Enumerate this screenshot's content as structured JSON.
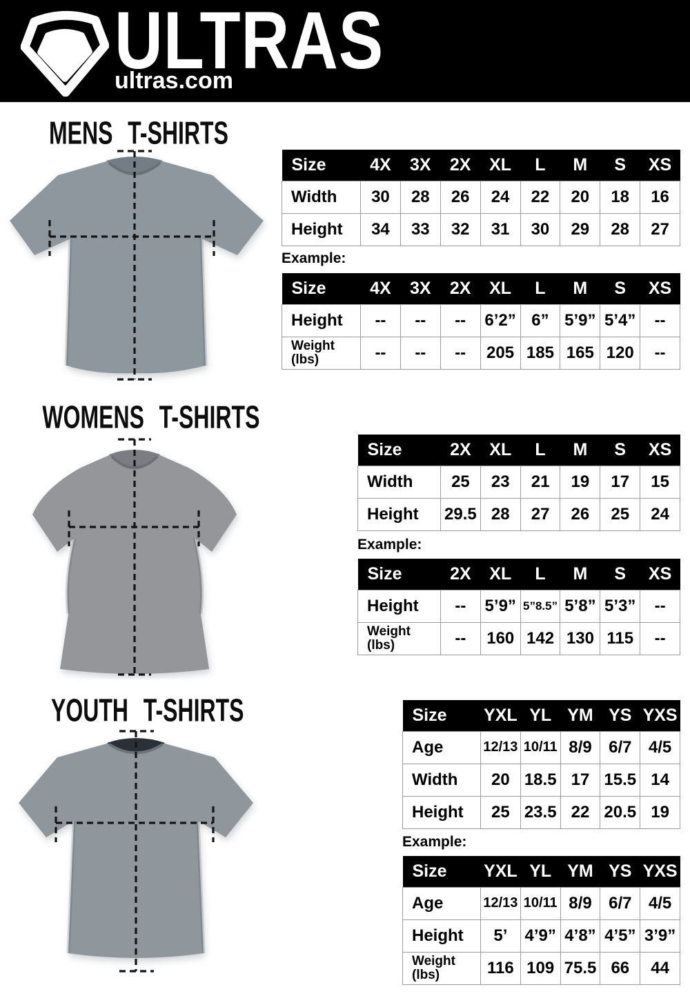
{
  "header": {
    "brand": "ULTRAS",
    "domain": "ultras.com",
    "logo_icon": "pentagon-shield-icon"
  },
  "colors": {
    "header_bg": "#000000",
    "table_header_bg": "#000000",
    "table_border": "#9b9b9b",
    "shirt_gray_mens": "#8e979e",
    "shirt_gray_womens": "#94969a",
    "shirt_gray_youth": "#8f979d",
    "measure_line": "#141414"
  },
  "sections": [
    {
      "id": "mens",
      "title": "MENS T-SHIRTS",
      "example_label": "Example:",
      "size_table": {
        "header": [
          "Size",
          "4X",
          "3X",
          "2X",
          "XL",
          "L",
          "M",
          "S",
          "XS"
        ],
        "rows": [
          {
            "label": "Width",
            "values": [
              "30",
              "28",
              "26",
              "24",
              "22",
              "20",
              "18",
              "16"
            ]
          },
          {
            "label": "Height",
            "values": [
              "34",
              "33",
              "32",
              "31",
              "30",
              "29",
              "28",
              "27"
            ]
          }
        ]
      },
      "example_table": {
        "header": [
          "Size",
          "4X",
          "3X",
          "2X",
          "XL",
          "L",
          "M",
          "S",
          "XS"
        ],
        "rows": [
          {
            "label": "Height",
            "values": [
              "--",
              "--",
              "--",
              "6’2”",
              "6”",
              "5’9”",
              "5’4”",
              "--"
            ]
          },
          {
            "label": "Weight\n(lbs)",
            "values": [
              "--",
              "--",
              "--",
              "205",
              "185",
              "165",
              "120",
              "--"
            ]
          }
        ]
      }
    },
    {
      "id": "womens",
      "title": "WOMENS T-SHIRTS",
      "example_label": "Example:",
      "size_table": {
        "header": [
          "Size",
          "2X",
          "XL",
          "L",
          "M",
          "S",
          "XS"
        ],
        "rows": [
          {
            "label": "Width",
            "values": [
              "25",
              "23",
              "21",
              "19",
              "17",
              "15"
            ]
          },
          {
            "label": "Height",
            "values": [
              "29.5",
              "28",
              "27",
              "26",
              "25",
              "24"
            ]
          }
        ]
      },
      "example_table": {
        "header": [
          "Size",
          "2X",
          "XL",
          "L",
          "M",
          "S",
          "XS"
        ],
        "rows": [
          {
            "label": "Height",
            "values": [
              "--",
              "5’9”",
              "5”8.5”",
              "5’8”",
              "5’3”",
              "--"
            ]
          },
          {
            "label": "Weight\n(lbs)",
            "values": [
              "--",
              "160",
              "142",
              "130",
              "115",
              "--"
            ]
          }
        ]
      }
    },
    {
      "id": "youth",
      "title": "YOUTH T-SHIRTS",
      "example_label": "Example:",
      "size_table": {
        "header": [
          "Size",
          "YXL",
          "YL",
          "YM",
          "YS",
          "YXS"
        ],
        "rows": [
          {
            "label": "Age",
            "values": [
              "12/13",
              "10/11",
              "8/9",
              "6/7",
              "4/5"
            ]
          },
          {
            "label": "Width",
            "values": [
              "20",
              "18.5",
              "17",
              "15.5",
              "14"
            ]
          },
          {
            "label": "Height",
            "values": [
              "25",
              "23.5",
              "22",
              "20.5",
              "19"
            ]
          }
        ]
      },
      "example_table": {
        "header": [
          "Size",
          "YXL",
          "YL",
          "YM",
          "YS",
          "YXS"
        ],
        "rows": [
          {
            "label": "Age",
            "values": [
              "12/13",
              "10/11",
              "8/9",
              "6/7",
              "4/5"
            ]
          },
          {
            "label": "Height",
            "values": [
              "5’",
              "4’9”",
              "4’8”",
              "4’5”",
              "3’9”"
            ]
          },
          {
            "label": "Weight\n(lbs)",
            "values": [
              "116",
              "109",
              "75.5",
              "66",
              "44"
            ]
          }
        ]
      }
    }
  ]
}
